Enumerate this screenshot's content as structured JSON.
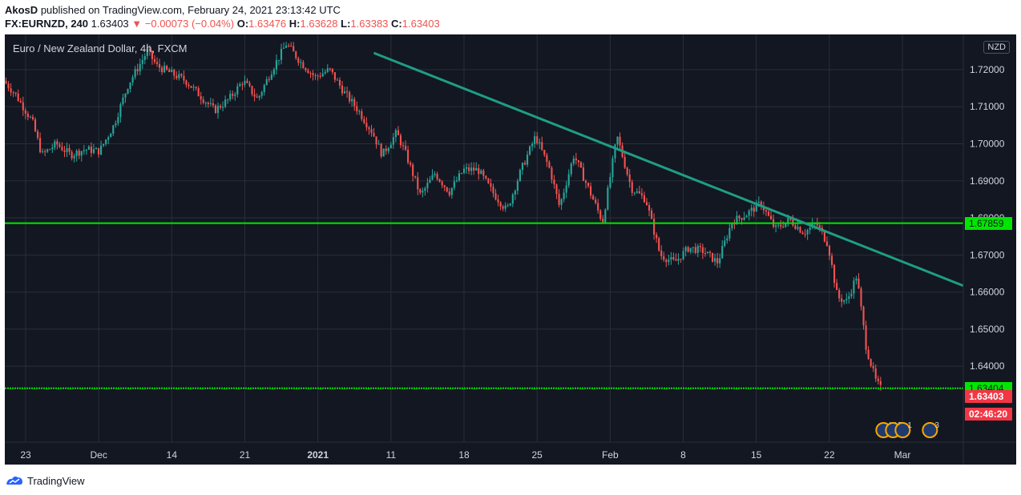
{
  "header": {
    "author": "AkosD",
    "published_text": "published on TradingView.com, February 24, 2021 23:13:42 UTC"
  },
  "symbol": {
    "ticker": "FX:EURNZD, 240",
    "last": "1.63403",
    "change": "▼ −0.00073 (−0.04%)",
    "o_label": "O:",
    "o_value": "1.63476",
    "h_label": "H:",
    "h_value": "1.63628",
    "l_label": "L:",
    "l_value": "1.63383",
    "c_label": "C:",
    "c_value": "1.63403"
  },
  "colors": {
    "bg": "#131722",
    "grid": "#2a2e39",
    "text": "#d1d4dc",
    "up": "#26a69a",
    "down": "#ef5350",
    "level": "#00e600",
    "trend": "#1e9e85"
  },
  "chart_data": {
    "type": "candlestick",
    "title": "Euro / New Zealand Dollar, 4h, FXCM",
    "currency": "NZD",
    "ylim": [
      1.6195,
      1.7295
    ],
    "y_ticks": [
      "1.72000",
      "1.71000",
      "1.70000",
      "1.69000",
      "1.68000",
      "1.67000",
      "1.66000",
      "1.65000",
      "1.64000"
    ],
    "x_ticks": [
      "23",
      "Dec",
      "14",
      "21",
      "2021",
      "11",
      "18",
      "25",
      "Feb",
      "8",
      "15",
      "22",
      "Mar"
    ],
    "price_path": [
      [
        0,
        1.717
      ],
      [
        0.012,
        1.7135
      ],
      [
        0.03,
        1.706
      ],
      [
        0.04,
        1.697
      ],
      [
        0.055,
        1.7
      ],
      [
        0.07,
        1.697
      ],
      [
        0.085,
        1.6985
      ],
      [
        0.1,
        1.698
      ],
      [
        0.115,
        1.705
      ],
      [
        0.13,
        1.716
      ],
      [
        0.15,
        1.725
      ],
      [
        0.16,
        1.721
      ],
      [
        0.175,
        1.719
      ],
      [
        0.19,
        1.717
      ],
      [
        0.205,
        1.713
      ],
      [
        0.22,
        1.709
      ],
      [
        0.235,
        1.712
      ],
      [
        0.25,
        1.717
      ],
      [
        0.265,
        1.712
      ],
      [
        0.28,
        1.72
      ],
      [
        0.295,
        1.727
      ],
      [
        0.31,
        1.722
      ],
      [
        0.325,
        1.718
      ],
      [
        0.34,
        1.72
      ],
      [
        0.355,
        1.714
      ],
      [
        0.37,
        1.709
      ],
      [
        0.385,
        1.703
      ],
      [
        0.395,
        1.697
      ],
      [
        0.41,
        1.703
      ],
      [
        0.42,
        1.697
      ],
      [
        0.435,
        1.686
      ],
      [
        0.45,
        1.692
      ],
      [
        0.465,
        1.687
      ],
      [
        0.48,
        1.693
      ],
      [
        0.495,
        1.693
      ],
      [
        0.51,
        1.687
      ],
      [
        0.525,
        1.682
      ],
      [
        0.54,
        1.693
      ],
      [
        0.555,
        1.702
      ],
      [
        0.57,
        1.693
      ],
      [
        0.58,
        1.683
      ],
      [
        0.595,
        1.697
      ],
      [
        0.61,
        1.688
      ],
      [
        0.625,
        1.679
      ],
      [
        0.64,
        1.702
      ],
      [
        0.655,
        1.688
      ],
      [
        0.67,
        1.685
      ],
      [
        0.685,
        1.67
      ],
      [
        0.7,
        1.668
      ],
      [
        0.715,
        1.672
      ],
      [
        0.73,
        1.671
      ],
      [
        0.745,
        1.668
      ],
      [
        0.76,
        1.679
      ],
      [
        0.775,
        1.681
      ],
      [
        0.79,
        1.684
      ],
      [
        0.805,
        1.677
      ],
      [
        0.82,
        1.6795
      ],
      [
        0.835,
        1.676
      ],
      [
        0.848,
        1.6785
      ],
      [
        0.86,
        1.673
      ],
      [
        0.87,
        1.6585
      ],
      [
        0.88,
        1.6575
      ],
      [
        0.89,
        1.6645
      ],
      [
        0.9,
        1.645
      ],
      [
        0.91,
        1.636
      ],
      [
        0.915,
        1.634
      ]
    ],
    "trendline": {
      "from": [
        0.385,
        1.7245
      ],
      "to": [
        1.0,
        1.6617
      ]
    },
    "horizontal_levels": [
      {
        "price": "1.67859",
        "value": 1.67859,
        "style": "solid"
      },
      {
        "price": "1.63404",
        "value": 1.63404,
        "style": "dotted"
      }
    ],
    "last_price": {
      "price": "1.63403",
      "value": 1.63403
    },
    "countdown": "02:46:20",
    "event_badges": [
      "10",
      "5",
      "1",
      "3"
    ]
  },
  "footer": {
    "brand": "TradingView"
  }
}
